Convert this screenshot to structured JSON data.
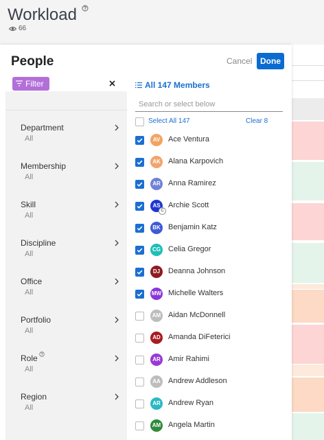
{
  "header": {
    "title": "Workload",
    "views": "66"
  },
  "panel": {
    "title": "People",
    "cancel": "Cancel",
    "done": "Done",
    "filter": "Filter"
  },
  "filters": [
    {
      "label": "Department",
      "value": "All"
    },
    {
      "label": "Membership",
      "value": "All"
    },
    {
      "label": "Skill",
      "value": "All"
    },
    {
      "label": "Discipline",
      "value": "All"
    },
    {
      "label": "Office",
      "value": "All"
    },
    {
      "label": "Portfolio",
      "value": "All"
    },
    {
      "label": "Role",
      "value": "All",
      "help": true
    },
    {
      "label": "Region",
      "value": "All"
    }
  ],
  "members": {
    "heading": "All 147 Members",
    "search_placeholder": "Search or select below",
    "select_all": "Select All 147",
    "clear": "Clear 8",
    "list": [
      {
        "initials": "AV",
        "name": "Ace Ventura",
        "checked": true,
        "color": "#f3a462"
      },
      {
        "initials": "AK",
        "name": "Alana Karpovich",
        "checked": true,
        "color": "#f2a46c"
      },
      {
        "initials": "AR",
        "name": "Anna Ramirez",
        "checked": true,
        "color": "#6f82d8"
      },
      {
        "initials": "AS",
        "name": "Archie Scott",
        "checked": true,
        "color": "#1f36d4",
        "badge": "C"
      },
      {
        "initials": "BK",
        "name": "Benjamin Katz",
        "checked": true,
        "color": "#3d5ad8"
      },
      {
        "initials": "CG",
        "name": "Celia Gregor",
        "checked": true,
        "color": "#1fbfb8"
      },
      {
        "initials": "DJ",
        "name": "Deanna Johnson",
        "checked": true,
        "color": "#8e1b20"
      },
      {
        "initials": "MW",
        "name": "Michelle Walters",
        "checked": true,
        "color": "#8a36d8"
      },
      {
        "initials": "AM",
        "name": "Aidan McDonnell",
        "checked": false,
        "color": "#bdbdbd"
      },
      {
        "initials": "AD",
        "name": "Amanda DiFeterici",
        "checked": false,
        "color": "#a81c22"
      },
      {
        "initials": "AR",
        "name": "Amir Rahimi",
        "checked": false,
        "color": "#9a3ad6"
      },
      {
        "initials": "AA",
        "name": "Andrew Addleson",
        "checked": false,
        "color": "#bdbdbd"
      },
      {
        "initials": "AR",
        "name": "Andrew Ryan",
        "checked": false,
        "color": "#2bb8c6"
      },
      {
        "initials": "AM",
        "name": "Angela Martin",
        "checked": false,
        "color": "#2f8a3c"
      }
    ]
  }
}
